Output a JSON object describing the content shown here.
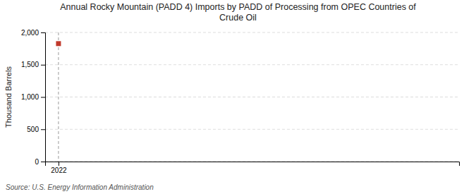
{
  "chart_data": {
    "type": "scatter",
    "title": "Annual Rocky Mountain (PADD 4) Imports by PADD of Processing from OPEC Countries of\nCrude Oil",
    "y_label": "Thousand Barrels",
    "source": "Source: U.S. Energy Information Administration",
    "x": [
      2022
    ],
    "values": [
      1827
    ],
    "color": "#c0392b",
    "marker": "square",
    "xlim": [
      2021.7,
      2031.0
    ],
    "xticks": [
      2022
    ],
    "ylim": [
      0,
      2000
    ],
    "yticks": [
      0,
      500,
      {
        "value": 1000,
        "label": "1,000"
      },
      {
        "value": 1500,
        "label": "1,500"
      },
      {
        "value": 2000,
        "label": "2,000"
      }
    ],
    "vline": 2022,
    "grid": true
  }
}
